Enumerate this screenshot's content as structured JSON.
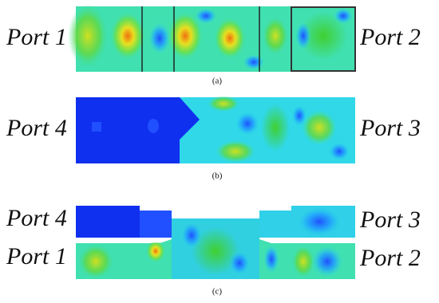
{
  "figure": {
    "panels": [
      {
        "label": "(a)",
        "left_ports": [
          "Port 1"
        ],
        "right_ports": [
          "Port 2"
        ]
      },
      {
        "label": "(b)",
        "left_ports": [
          "Port 4"
        ],
        "right_ports": [
          "Port 3"
        ]
      },
      {
        "label": "(c)",
        "left_ports": [
          "Port 4",
          "Port 1"
        ],
        "right_ports": [
          "Port 3",
          "Port 2"
        ]
      }
    ]
  }
}
